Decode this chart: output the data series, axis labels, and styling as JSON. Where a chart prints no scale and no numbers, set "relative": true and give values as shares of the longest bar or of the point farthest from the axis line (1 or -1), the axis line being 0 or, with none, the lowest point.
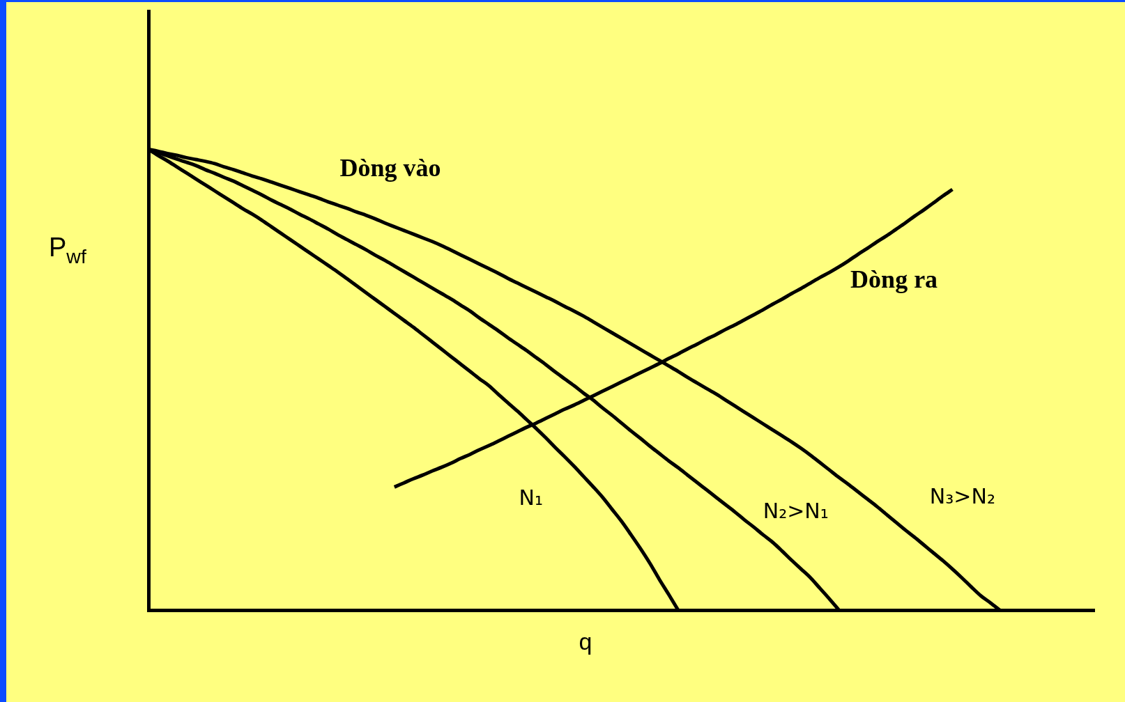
{
  "chart_data": {
    "type": "line",
    "relative": true,
    "xlabel": "q",
    "ylabel": "P$_{wf}$",
    "ylim": [
      0,
      1.3
    ],
    "annotations": [
      "Dòng vào"
    ],
    "categories": [
      null,
      null,
      null,
      null,
      null,
      null,
      null,
      null,
      null,
      null,
      null,
      null,
      null,
      null,
      null,
      null,
      null,
      null,
      null,
      null,
      null,
      null,
      null,
      null,
      null,
      null,
      null,
      null,
      null,
      null,
      null,
      null,
      null,
      null,
      null,
      null,
      null,
      null,
      null,
      null,
      null,
      null,
      null,
      null,
      null,
      null,
      null,
      null,
      null,
      null,
      null,
      null,
      null,
      null,
      null,
      null,
      null,
      null,
      null,
      null,
      null,
      null,
      null,
      null,
      null,
      null,
      null,
      null,
      null,
      null,
      null,
      null,
      null,
      null,
      null,
      null,
      null,
      null,
      null,
      null,
      null,
      null,
      null,
      null,
      null,
      null,
      null,
      null,
      null,
      null,
      null,
      null,
      null,
      null,
      null,
      null,
      null,
      null,
      null,
      null,
      null
    ],
    "series": [
      {
        "name": "N₁",
        "color": "#000000",
        "values": [
          1,
          0.987,
          0.975,
          0.962,
          0.949,
          0.936,
          0.923,
          0.91,
          0.897,
          0.884,
          0.871,
          0.859,
          0.846,
          0.832,
          0.818,
          0.804,
          0.79,
          0.776,
          0.762,
          0.748,
          0.734,
          0.719,
          0.704,
          0.689,
          0.674,
          0.659,
          0.644,
          0.629,
          0.614,
          0.598,
          0.582,
          0.566,
          0.55,
          0.534,
          0.518,
          0.502,
          0.487,
          0.468,
          0.45,
          0.432,
          0.413,
          0.394,
          0.374,
          0.353,
          0.333,
          0.312,
          0.29,
          0.268,
          0.245,
          0.219,
          0.193,
          0.164,
          0.134,
          0.102,
          0.067,
          0.034,
          0,
          null,
          null,
          null,
          null,
          null,
          null,
          null,
          null,
          null,
          null,
          null,
          null,
          null,
          null,
          null,
          null,
          null,
          null,
          null,
          null,
          null,
          null,
          null,
          null,
          null,
          null,
          null,
          null,
          null,
          null,
          null,
          null,
          null,
          null,
          null,
          null,
          null,
          null,
          null,
          null,
          null,
          null,
          null,
          null
        ]
      },
      {
        "name": "N₂>N₁",
        "color": "#000000",
        "values": [
          1,
          0.993,
          0.986,
          0.979,
          0.972,
          0.965,
          0.956,
          0.948,
          0.939,
          0.931,
          0.921,
          0.911,
          0.901,
          0.89,
          0.88,
          0.87,
          0.859,
          0.849,
          0.838,
          0.827,
          0.815,
          0.804,
          0.793,
          0.782,
          0.77,
          0.759,
          0.747,
          0.735,
          0.723,
          0.711,
          0.699,
          0.687,
          0.675,
          0.662,
          0.649,
          0.634,
          0.62,
          0.606,
          0.591,
          0.577,
          0.563,
          0.548,
          0.533,
          0.517,
          0.502,
          0.487,
          0.471,
          0.456,
          0.439,
          0.423,
          0.406,
          0.389,
          0.373,
          0.356,
          0.34,
          0.324,
          0.309,
          0.293,
          0.277,
          0.261,
          0.245,
          0.229,
          0.213,
          0.196,
          0.18,
          0.163,
          0.147,
          0.128,
          0.108,
          0.089,
          0.07,
          0.047,
          0.024,
          0,
          null,
          null,
          null,
          null,
          null,
          null,
          null,
          null,
          null,
          null,
          null,
          null,
          null,
          null,
          null,
          null,
          null,
          null,
          null,
          null,
          null,
          null,
          null,
          null,
          null,
          null,
          null
        ]
      },
      {
        "name": "N₃>N₂",
        "color": "#000000",
        "values": [
          1,
          0.996,
          0.991,
          0.987,
          0.982,
          0.978,
          0.974,
          0.969,
          0.962,
          0.956,
          0.949,
          0.942,
          0.936,
          0.929,
          0.922,
          0.915,
          0.908,
          0.901,
          0.894,
          0.886,
          0.879,
          0.872,
          0.864,
          0.857,
          0.849,
          0.84,
          0.832,
          0.824,
          0.816,
          0.808,
          0.8,
          0.791,
          0.781,
          0.771,
          0.761,
          0.751,
          0.741,
          0.731,
          0.72,
          0.71,
          0.7,
          0.69,
          0.68,
          0.67,
          0.659,
          0.649,
          0.638,
          0.626,
          0.614,
          0.602,
          0.59,
          0.578,
          0.566,
          0.554,
          0.542,
          0.53,
          0.518,
          0.505,
          0.493,
          0.481,
          0.469,
          0.456,
          0.443,
          0.43,
          0.417,
          0.404,
          0.391,
          0.378,
          0.365,
          0.351,
          0.336,
          0.32,
          0.304,
          0.288,
          0.273,
          0.257,
          0.241,
          0.225,
          0.208,
          0.191,
          0.174,
          0.158,
          0.141,
          0.124,
          0.107,
          0.089,
          0.07,
          0.05,
          0.031,
          0.016,
          0,
          null,
          null,
          null,
          null,
          null,
          null,
          null,
          null,
          null,
          null
        ]
      },
      {
        "name": "Dòng ra",
        "color": "#000000",
        "values": [
          null,
          null,
          null,
          null,
          null,
          null,
          null,
          null,
          null,
          null,
          null,
          null,
          null,
          null,
          null,
          null,
          null,
          null,
          null,
          null,
          null,
          null,
          null,
          null,
          null,
          null,
          0.267,
          0.276,
          0.285,
          0.293,
          0.302,
          0.31,
          0.319,
          0.329,
          0.338,
          0.348,
          0.357,
          0.367,
          0.377,
          0.387,
          0.397,
          0.406,
          0.416,
          0.426,
          0.436,
          0.445,
          0.455,
          0.465,
          0.475,
          0.485,
          0.495,
          0.505,
          0.515,
          0.525,
          0.535,
          0.546,
          0.556,
          0.567,
          0.577,
          0.588,
          0.598,
          0.609,
          0.619,
          0.63,
          0.641,
          0.652,
          0.664,
          0.675,
          0.687,
          0.698,
          0.71,
          0.722,
          0.733,
          0.745,
          0.758,
          0.772,
          0.785,
          0.799,
          0.812,
          0.826,
          0.84,
          0.855,
          0.869,
          0.884,
          0.899,
          0.913,
          null,
          null,
          null,
          null,
          null,
          null,
          null,
          null,
          null,
          null,
          null,
          null,
          null,
          null,
          null
        ]
      }
    ]
  }
}
